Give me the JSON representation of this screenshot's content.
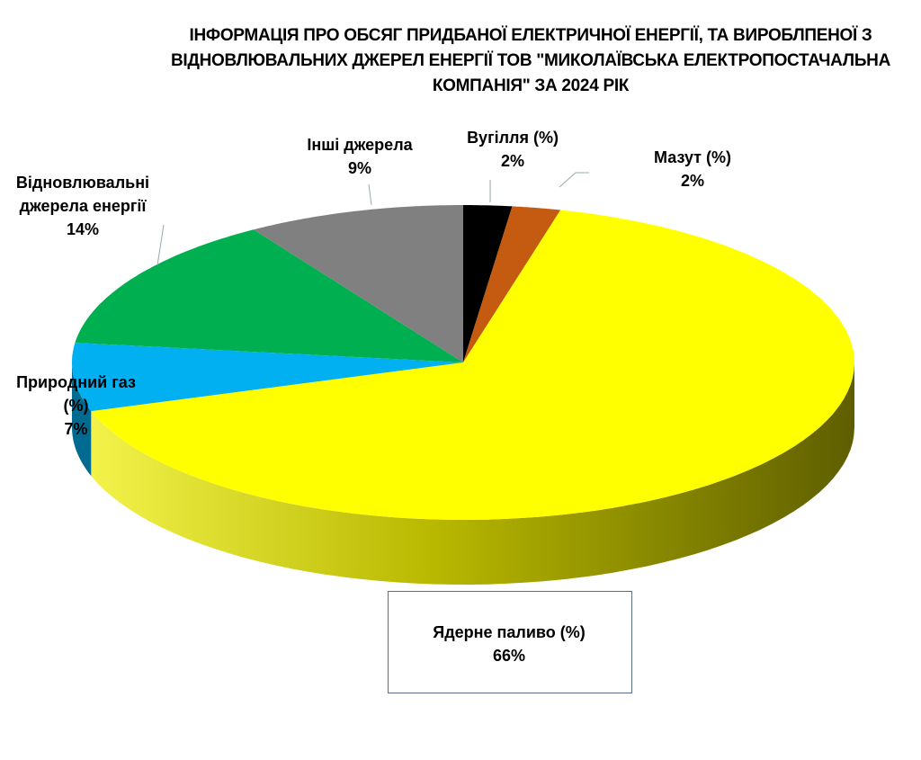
{
  "chart_data": {
    "type": "pie",
    "style": "3d",
    "title": "ІНФОРМАЦІЯ ПРО ОБСЯГ ПРИДБАНОЇ ЕЛЕКТРИЧНОЇ ЕНЕРГІЇ, ТА ВИРОБЛПЕНОЇ З ВІДНОВЛЮВАЛЬНИХ ДЖЕРЕЛ ЕНЕРГІЇ ТОВ \"МИКОЛАЇВСЬКА ЕЛЕКТРОПОСТАЧАЛЬНА КОМПАНІЯ\" ЗА 2024 РІК",
    "slices": [
      {
        "label": "Вугілля (%)",
        "value": 2,
        "value_label": "2%",
        "color": "#000000"
      },
      {
        "label": "Мазут (%)",
        "value": 2,
        "value_label": "2%",
        "color": "#c55a11"
      },
      {
        "label": "Ядерне паливо (%)",
        "value": 66,
        "value_label": "66%",
        "color": "#ffff00"
      },
      {
        "label": "Природний газ (%)",
        "value": 7,
        "value_label": "7%",
        "color": "#00b0f0"
      },
      {
        "label": "Відновлювальні джерела енергії",
        "value": 14,
        "value_label": "14%",
        "color": "#00b050"
      },
      {
        "label": "Інші джерела",
        "value": 9,
        "value_label": "9%",
        "color": "#808080"
      }
    ],
    "legend": "none"
  }
}
